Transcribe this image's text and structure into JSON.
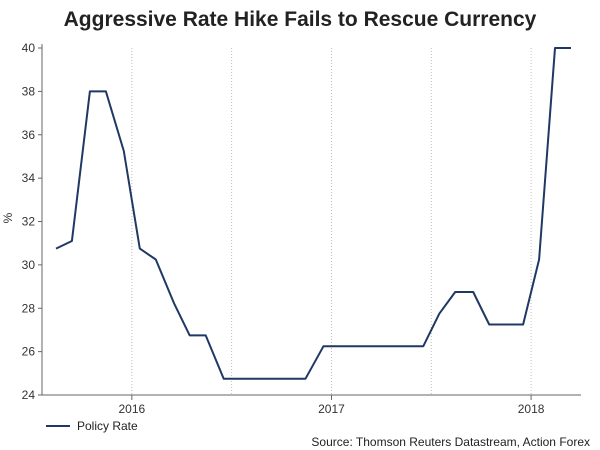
{
  "chart_data": {
    "type": "line",
    "title": "Aggressive Rate Hike Fails to Rescue Currency",
    "xlabel": "",
    "ylabel": "%",
    "ylim": [
      24,
      40
    ],
    "yticks": [
      24,
      26,
      28,
      30,
      32,
      34,
      36,
      38,
      40
    ],
    "xlim": [
      2015.55,
      2018.25
    ],
    "xticks": [
      {
        "label": "2016",
        "x": 2016.0
      },
      {
        "label": "2017",
        "x": 2017.0
      },
      {
        "label": "2018",
        "x": 2018.0
      }
    ],
    "grid_x": [
      2016.0,
      2016.5,
      2017.0,
      2017.5,
      2018.0
    ],
    "series": [
      {
        "name": "Policy Rate",
        "color": "#1f3864",
        "x": [
          2015.62,
          2015.7,
          2015.79,
          2015.87,
          2015.96,
          2016.04,
          2016.12,
          2016.21,
          2016.29,
          2016.37,
          2016.46,
          2016.54,
          2016.62,
          2016.71,
          2016.79,
          2016.87,
          2016.96,
          2017.04,
          2017.12,
          2017.21,
          2017.29,
          2017.37,
          2017.46,
          2017.54,
          2017.62,
          2017.71,
          2017.79,
          2017.87,
          2017.96,
          2018.04,
          2018.12,
          2018.2
        ],
        "y": [
          30.75,
          31.1,
          38.0,
          38.0,
          35.25,
          30.75,
          30.25,
          28.25,
          26.75,
          26.75,
          24.75,
          24.75,
          24.75,
          24.75,
          24.75,
          24.75,
          26.25,
          26.25,
          26.25,
          26.25,
          26.25,
          26.25,
          26.25,
          27.75,
          28.75,
          28.75,
          27.25,
          27.25,
          27.25,
          30.25,
          40.0,
          40.0
        ]
      }
    ],
    "legend": {
      "position": "bottom-left",
      "entries": [
        "Policy Rate"
      ]
    },
    "source": "Source: Thomson Reuters Datastream, Action Forex"
  }
}
